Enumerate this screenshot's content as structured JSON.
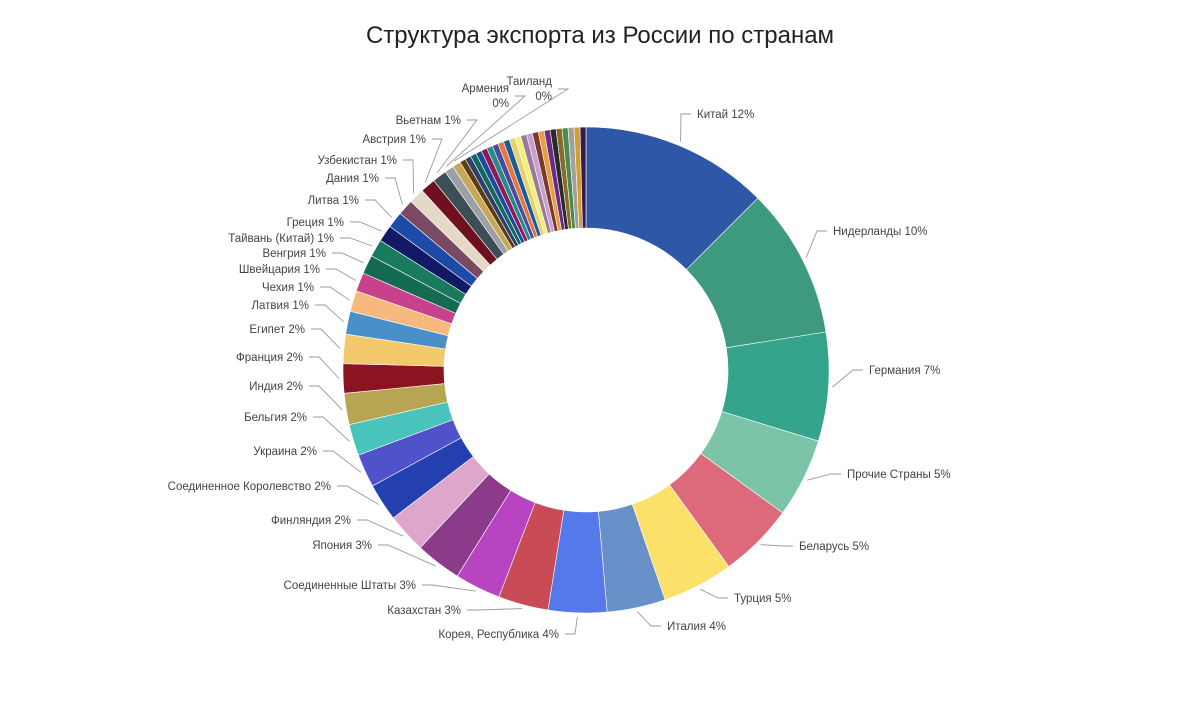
{
  "chart_data": {
    "type": "pie",
    "donut": true,
    "title": "Структура экспорта из России по странам",
    "slices": [
      {
        "label": "Китай",
        "value": 12,
        "display": "12%",
        "color": "#2f57a8"
      },
      {
        "label": "Нидерланды",
        "value": 10,
        "display": "10%",
        "color": "#3d9a7e"
      },
      {
        "label": "Германия",
        "value": 7,
        "display": "7%",
        "color": "#34a48d"
      },
      {
        "label": "Прочие Страны",
        "value": 5,
        "display": "5%",
        "color": "#7cc4a8"
      },
      {
        "label": "Беларусь",
        "value": 5,
        "display": "5%",
        "color": "#dd6a7a"
      },
      {
        "label": "Турция",
        "value": 5,
        "display": "5%",
        "color": "#fbe06a"
      },
      {
        "label": "Италия",
        "value": 4,
        "display": "4%",
        "color": "#6890c8"
      },
      {
        "label": "Корея, Республика",
        "value": 4,
        "display": "4%",
        "color": "#5579ea"
      },
      {
        "label": "Казахстан",
        "value": 3,
        "display": "3%",
        "color": "#c94b55"
      },
      {
        "label": "Соединенные Штаты",
        "value": 3,
        "display": "3%",
        "color": "#b944c2"
      },
      {
        "label": "Япония",
        "value": 3,
        "display": "3%",
        "color": "#8c3b8a"
      },
      {
        "label": "Финляндия",
        "value": 2,
        "display": "2%",
        "color": "#dfa6cc"
      },
      {
        "label": "Соединенное Королевство",
        "value": 2,
        "display": "2%",
        "color": "#233fb0"
      },
      {
        "label": "Украина",
        "value": 2,
        "display": "2%",
        "color": "#4f52c8"
      },
      {
        "label": "Бельгия",
        "value": 2,
        "display": "2%",
        "color": "#48c4bc"
      },
      {
        "label": "Индия",
        "value": 2,
        "display": "2%",
        "color": "#b8a554"
      },
      {
        "label": "Франция",
        "value": 2,
        "display": "2%",
        "color": "#8a1420"
      },
      {
        "label": "Египет",
        "value": 2,
        "display": "2%",
        "color": "#f4c96c"
      },
      {
        "label": "Латвия",
        "value": 1,
        "display": "1%",
        "color": "#4a90c8"
      },
      {
        "label": "Чехия",
        "value": 1,
        "display": "1%",
        "color": "#f7b97e"
      },
      {
        "label": "Швейцария",
        "value": 1,
        "display": "1%",
        "color": "#c8418c"
      },
      {
        "label": "Венгрия",
        "value": 1,
        "display": "1%",
        "color": "#146b52"
      },
      {
        "label": "Тайвань (Китай)",
        "value": 1,
        "display": "1%",
        "color": "#1a7a5e"
      },
      {
        "label": "Греция",
        "value": 1,
        "display": "1%",
        "color": "#121a66"
      },
      {
        "label": "Литва",
        "value": 1,
        "display": "1%",
        "color": "#1c4aa6"
      },
      {
        "label": "Дания",
        "value": 1,
        "display": "1%",
        "color": "#7a4a62"
      },
      {
        "label": "Узбекистан",
        "value": 1,
        "display": "1%",
        "color": "#e6d8c6"
      },
      {
        "label": "Австрия",
        "value": 1,
        "display": "1%",
        "color": "#6e1020"
      },
      {
        "label": "Вьетнам",
        "value": 1,
        "display": "1%",
        "color": "#3e4e56"
      },
      {
        "label": "Армения",
        "value": 0,
        "display": "0%",
        "color": "#9aa0a6"
      },
      {
        "label": "Таиланд",
        "value": 0,
        "display": "0%",
        "color": "#c9a75a"
      }
    ],
    "minor_slice_colors": [
      "#5a3e10",
      "#2e3e6e",
      "#116a5a",
      "#1e4a9a",
      "#8a1a5a",
      "#2a8a8a",
      "#4a4aa0",
      "#e07a3e",
      "#1a5a9a",
      "#e8d070",
      "#f0f07a",
      "#9a7a9a",
      "#c8a0d0",
      "#7a3a2a",
      "#e8a040",
      "#6a2a8a",
      "#2a2a2a",
      "#8a6a2a",
      "#4a8a4a",
      "#a0a0a0",
      "#d0a030",
      "#3a1a4a"
    ]
  }
}
